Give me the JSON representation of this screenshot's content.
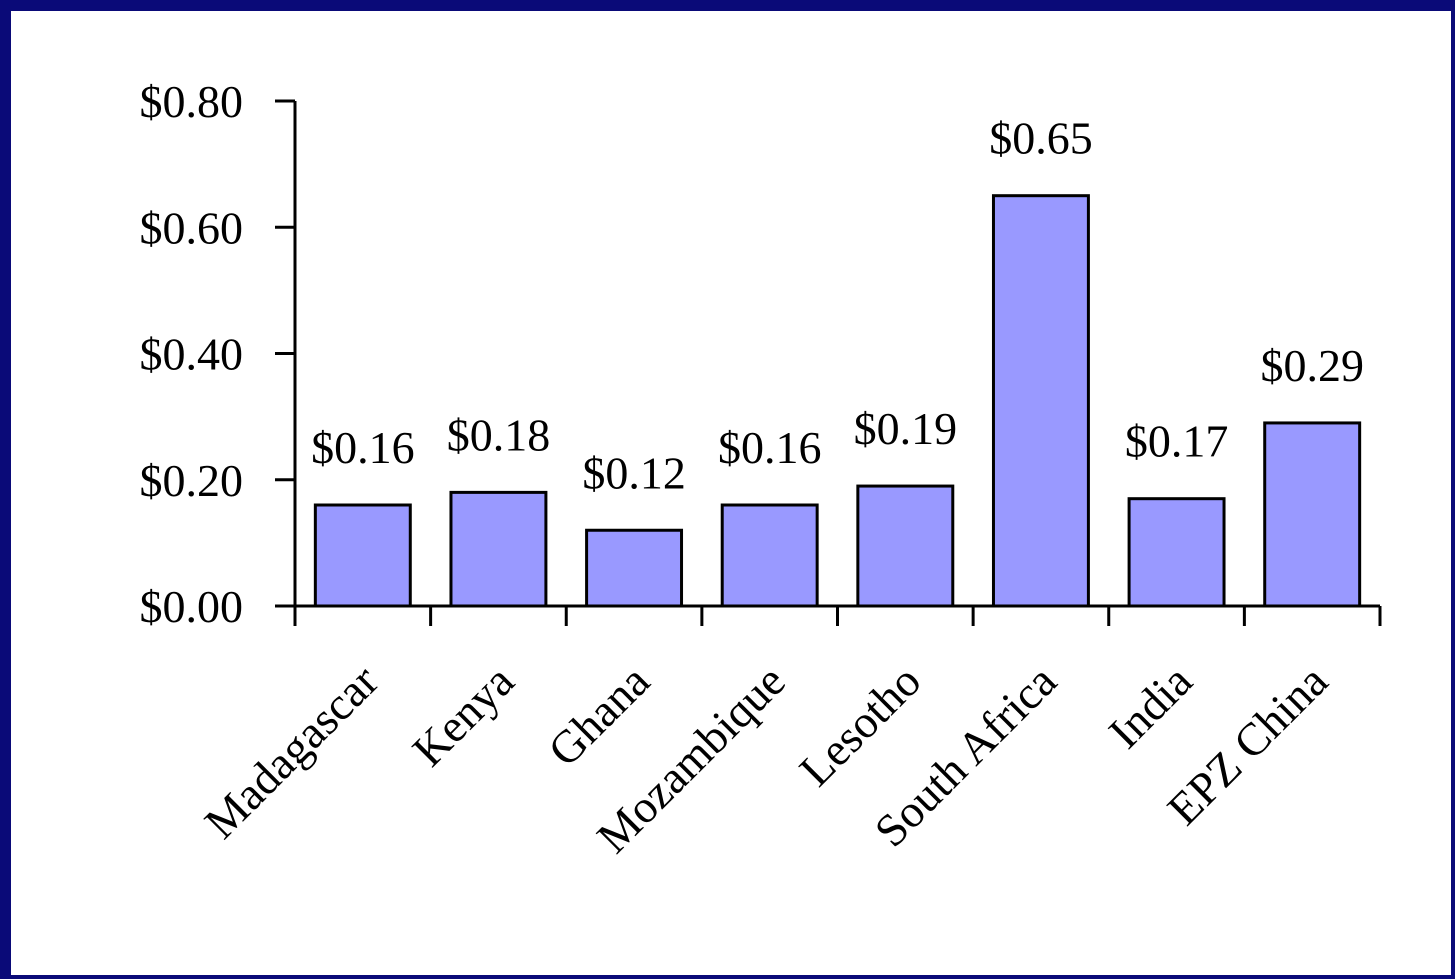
{
  "chart_data": {
    "type": "bar",
    "title": "",
    "xlabel": "",
    "ylabel": "",
    "categories": [
      "Madagascar",
      "Kenya",
      "Ghana",
      "Mozambique",
      "Lesotho",
      "South Africa",
      "India",
      "EPZ China"
    ],
    "values": [
      0.16,
      0.18,
      0.12,
      0.16,
      0.19,
      0.65,
      0.17,
      0.29
    ],
    "data_labels": [
      "$0.16",
      "$0.18",
      "$0.12",
      "$0.16",
      "$0.19",
      "$0.65",
      "$0.17",
      "$0.29"
    ],
    "ylim": [
      0,
      0.8
    ],
    "yticks": [
      0,
      0.2,
      0.4,
      0.6,
      0.8
    ],
    "ytick_labels": [
      "$0.00",
      "$0.20",
      "$0.40",
      "$0.60",
      "$0.80"
    ],
    "grid": false,
    "legend": "none",
    "bar_color": "#9999ff",
    "bar_edge_color": "#000000",
    "frame_color": "#0a0a78"
  }
}
